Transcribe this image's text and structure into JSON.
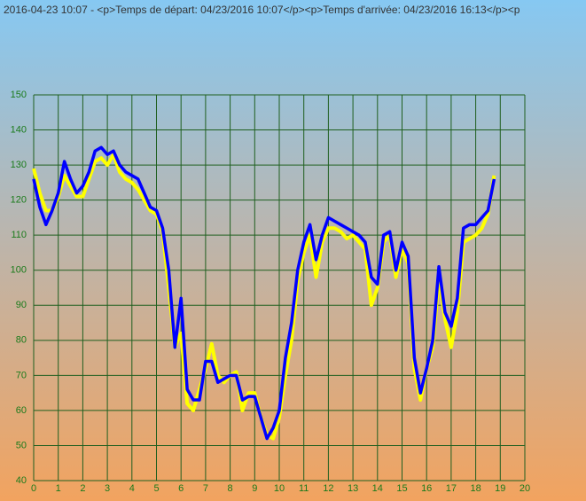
{
  "chart_data": {
    "type": "line",
    "title": "2016-04-23 10:07 - <p>Temps de départ: 04/23/2016 10:07</p><p>Temps d'arrivée: 04/23/2016 16:13</p><p",
    "x": [
      0,
      0.25,
      0.5,
      0.75,
      1,
      1.25,
      1.5,
      1.75,
      2,
      2.25,
      2.5,
      2.75,
      3,
      3.25,
      3.5,
      3.75,
      4,
      4.25,
      4.5,
      4.75,
      5,
      5.25,
      5.5,
      5.75,
      6,
      6.25,
      6.5,
      6.75,
      7,
      7.25,
      7.5,
      7.75,
      8,
      8.25,
      8.5,
      8.75,
      9,
      9.25,
      9.5,
      9.75,
      10,
      10.25,
      10.5,
      10.75,
      11,
      11.25,
      11.5,
      11.75,
      12,
      12.25,
      12.5,
      12.75,
      13,
      13.25,
      13.5,
      13.75,
      14,
      14.25,
      14.5,
      14.75,
      15,
      15.25,
      15.5,
      15.75,
      16,
      16.25,
      16.5,
      16.75,
      17,
      17.25,
      17.5,
      17.75,
      18,
      18.25,
      18.5,
      18.75
    ],
    "series": [
      {
        "color": "#ffff00",
        "values": [
          129,
          122,
          117,
          117,
          121,
          127,
          124,
          121,
          121,
          126,
          131,
          132,
          130,
          133,
          128,
          126,
          125,
          123,
          120,
          117,
          116,
          111,
          95,
          78,
          82,
          62,
          60,
          66,
          72,
          79,
          70,
          68,
          70,
          71,
          60,
          65,
          65,
          58,
          53,
          52,
          58,
          70,
          80,
          97,
          105,
          110,
          98,
          108,
          112,
          112,
          111,
          109,
          110,
          108,
          106,
          90,
          95,
          108,
          110,
          98,
          106,
          102,
          72,
          63,
          72,
          78,
          98,
          86,
          78,
          88,
          108,
          109,
          110,
          112,
          116,
          127
        ]
      },
      {
        "color": "#0000ff",
        "values": [
          126,
          118,
          113,
          117,
          122,
          131,
          126,
          122,
          124,
          128,
          134,
          135,
          133,
          134,
          130,
          128,
          127,
          126,
          122,
          118,
          117,
          112,
          100,
          78,
          92,
          66,
          63,
          63,
          74,
          74,
          68,
          69,
          70,
          70,
          63,
          64,
          64,
          58,
          52,
          55,
          60,
          75,
          85,
          100,
          108,
          113,
          103,
          110,
          115,
          114,
          113,
          112,
          111,
          110,
          108,
          98,
          96,
          110,
          111,
          100,
          108,
          104,
          75,
          65,
          72,
          80,
          101,
          88,
          84,
          92,
          112,
          113,
          113,
          115,
          117,
          126
        ]
      }
    ],
    "xlim": [
      0,
      20
    ],
    "ylim": [
      40,
      150
    ],
    "xticks": [
      0,
      1,
      2,
      3,
      4,
      5,
      6,
      7,
      8,
      9,
      10,
      11,
      12,
      13,
      14,
      15,
      16,
      17,
      18,
      19,
      20
    ],
    "yticks": [
      40,
      50,
      60,
      70,
      80,
      90,
      100,
      110,
      120,
      130,
      140,
      150
    ],
    "grid": true,
    "grid_color": "#1f5f1f"
  }
}
